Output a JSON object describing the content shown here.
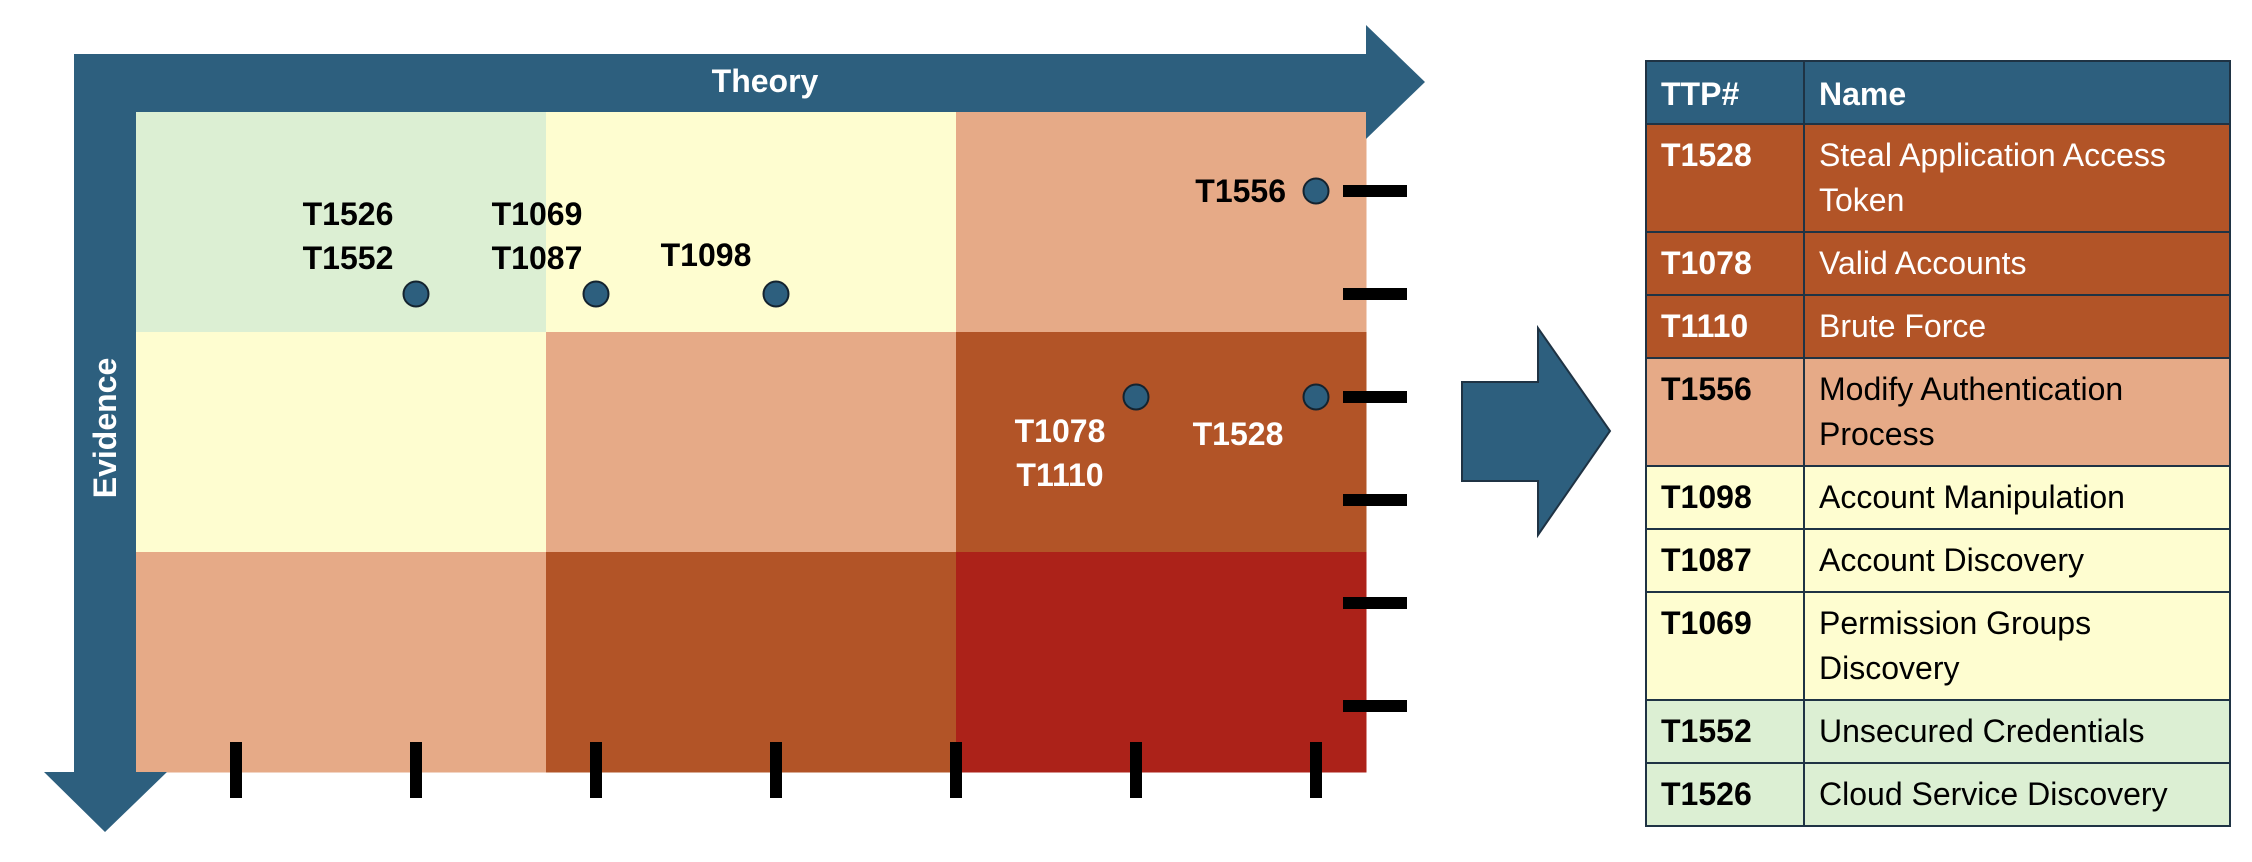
{
  "axes": {
    "x_label": "Theory",
    "y_label": "Evidence",
    "x_ticks": 7,
    "y_ticks": 6
  },
  "colors": {
    "axis": "#2d5f7e",
    "light_green": "#dcefd3",
    "light_yellow": "#fefdd0",
    "salmon": "#e6aa87",
    "rust": "#b25427",
    "red": "#ac2219",
    "marker": "#2d5f7e",
    "text_dark": "#000000",
    "text_light": "#ffffff"
  },
  "grid": [
    [
      "light_green",
      "light_yellow",
      "salmon"
    ],
    [
      "light_yellow",
      "salmon",
      "rust"
    ],
    [
      "salmon",
      "rust",
      "red"
    ]
  ],
  "markers": [
    {
      "x_tick": 2,
      "y_tick": 2
    },
    {
      "x_tick": 3,
      "y_tick": 2
    },
    {
      "x_tick": 4,
      "y_tick": 2
    },
    {
      "x_tick": 7,
      "y_tick": 1
    },
    {
      "x_tick": 6,
      "y_tick": 3
    },
    {
      "x_tick": 7,
      "y_tick": 3
    }
  ],
  "point_labels": [
    {
      "lines": [
        "T1526",
        "T1552"
      ],
      "color": "text_dark"
    },
    {
      "lines": [
        "T1069",
        "T1087"
      ],
      "color": "text_dark"
    },
    {
      "lines": [
        "T1098"
      ],
      "color": "text_dark"
    },
    {
      "lines": [
        "T1556"
      ],
      "color": "text_dark"
    },
    {
      "lines": [
        "T1078",
        "T1110"
      ],
      "color": "text_light"
    },
    {
      "lines": [
        "T1528"
      ],
      "color": "text_light"
    }
  ],
  "table": {
    "headers": [
      "TTP#",
      "Name"
    ],
    "rows": [
      {
        "id": "T1528",
        "name": "Steal Application Access Token",
        "fill": "rust",
        "text": "text_light"
      },
      {
        "id": "T1078",
        "name": "Valid Accounts",
        "fill": "rust",
        "text": "text_light"
      },
      {
        "id": "T1110",
        "name": "Brute Force",
        "fill": "rust",
        "text": "text_light"
      },
      {
        "id": "T1556",
        "name": "Modify Authentication Process",
        "fill": "salmon",
        "text": "text_dark"
      },
      {
        "id": "T1098",
        "name": "Account Manipulation",
        "fill": "light_yellow",
        "text": "text_dark"
      },
      {
        "id": "T1087",
        "name": "Account Discovery",
        "fill": "light_yellow",
        "text": "text_dark"
      },
      {
        "id": "T1069",
        "name": "Permission Groups Discovery",
        "fill": "light_yellow",
        "text": "text_dark"
      },
      {
        "id": "T1552",
        "name": "Unsecured Credentials",
        "fill": "light_green",
        "text": "text_dark"
      },
      {
        "id": "T1526",
        "name": "Cloud Service Discovery",
        "fill": "light_green",
        "text": "text_dark"
      }
    ]
  },
  "connector_icon": "right-arrow-icon"
}
